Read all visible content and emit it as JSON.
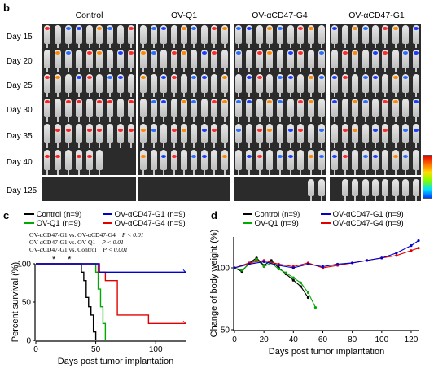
{
  "panel_b": {
    "letter": "b",
    "groups": [
      "Control",
      "OV-Q1",
      "OV-αCD47-G4",
      "OV-αCD47-G1"
    ],
    "days": [
      "Day 15",
      "Day 20",
      "Day 25",
      "Day 30",
      "Day 35",
      "Day 40",
      "Day 125"
    ],
    "colorbar": "rainbow luminescence scale (red high, blue low)"
  },
  "panel_c": {
    "letter": "c",
    "legend": [
      "Control (n=9)",
      "OV-αCD47-G1 (n=9)",
      "OV-Q1 (n=9)",
      "OV-αCD47-G4 (n=9)"
    ],
    "stats": [
      {
        "text": "OV-αCD47-G1  vs.  OV-αCD47-G4",
        "p": "P < 0.01"
      },
      {
        "text": "OV-αCD47-G1  vs.  OV-Q1",
        "p": "P < 0.01"
      },
      {
        "text": "OV-αCD47-G1  vs.  Control",
        "p": "P < 0.001"
      }
    ],
    "asterisk": "*"
  },
  "panel_d": {
    "letter": "d",
    "legend": [
      "Control (n=9)",
      "OV-αCD47-G1 (n=9)",
      "OV-Q1 (n=9)",
      "OV-αCD47-G4 (n=9)"
    ]
  },
  "chart_data": [
    {
      "type": "line",
      "title": "",
      "xlabel": "Days post tumor implantation",
      "ylabel": "Percent survival (%)",
      "xlim": [
        0,
        125
      ],
      "ylim": [
        0,
        100
      ],
      "xticks": [
        0,
        50,
        100
      ],
      "yticks": [
        0,
        50,
        100
      ],
      "step": true,
      "series": [
        {
          "name": "Control (n=9)",
          "color": "#000000",
          "x": [
            0,
            38,
            38,
            40,
            40,
            42,
            42,
            44,
            44,
            46,
            46,
            48,
            48,
            50,
            50
          ],
          "y": [
            100,
            100,
            89,
            89,
            78,
            78,
            56,
            56,
            44,
            44,
            33,
            33,
            11,
            11,
            0
          ]
        },
        {
          "name": "OV-Q1 (n=9)",
          "color": "#00aa00",
          "x": [
            0,
            50,
            50,
            52,
            52,
            54,
            54,
            56,
            56,
            58,
            58
          ],
          "y": [
            100,
            100,
            89,
            89,
            67,
            67,
            44,
            44,
            22,
            22,
            0
          ]
        },
        {
          "name": "OV-αCD47-G4 (n=9)",
          "color": "#e00000",
          "x": [
            0,
            52,
            52,
            58,
            58,
            68,
            68,
            94,
            94,
            125
          ],
          "y": [
            100,
            100,
            89,
            89,
            78,
            78,
            33,
            33,
            22,
            22
          ]
        },
        {
          "name": "OV-αCD47-G1 (n=9)",
          "color": "#0000cc",
          "x": [
            0,
            53,
            53,
            125
          ],
          "y": [
            100,
            100,
            89,
            89
          ]
        }
      ]
    },
    {
      "type": "line",
      "title": "",
      "xlabel": "Days post tumor implantation",
      "ylabel": "Change of body weight (%)",
      "xlim": [
        0,
        125
      ],
      "ylim": [
        50,
        125
      ],
      "xticks": [
        0,
        20,
        40,
        60,
        80,
        100,
        120
      ],
      "yticks": [
        50,
        100
      ],
      "series": [
        {
          "name": "Control (n=9)",
          "color": "#000000",
          "x": [
            0,
            5,
            10,
            15,
            20,
            25,
            30,
            35,
            40,
            45,
            50
          ],
          "y": [
            100,
            97,
            104,
            108,
            102,
            106,
            100,
            95,
            90,
            85,
            76
          ]
        },
        {
          "name": "OV-Q1 (n=9)",
          "color": "#00aa00",
          "x": [
            0,
            5,
            10,
            15,
            20,
            25,
            30,
            35,
            40,
            45,
            50,
            55
          ],
          "y": [
            100,
            98,
            103,
            107,
            101,
            104,
            99,
            96,
            92,
            88,
            80,
            68
          ]
        },
        {
          "name": "OV-αCD47-G4 (n=9)",
          "color": "#e00000",
          "x": [
            0,
            10,
            20,
            30,
            40,
            50,
            60,
            70,
            80,
            90,
            100,
            110,
            120,
            125
          ],
          "y": [
            100,
            104,
            106,
            103,
            101,
            104,
            100,
            102,
            104,
            106,
            108,
            110,
            114,
            116
          ]
        },
        {
          "name": "OV-αCD47-G1 (n=9)",
          "color": "#0000cc",
          "x": [
            0,
            10,
            20,
            30,
            40,
            50,
            60,
            70,
            80,
            90,
            100,
            110,
            120,
            125
          ],
          "y": [
            100,
            103,
            105,
            102,
            100,
            103,
            101,
            103,
            104,
            106,
            108,
            112,
            118,
            122
          ]
        }
      ]
    }
  ]
}
